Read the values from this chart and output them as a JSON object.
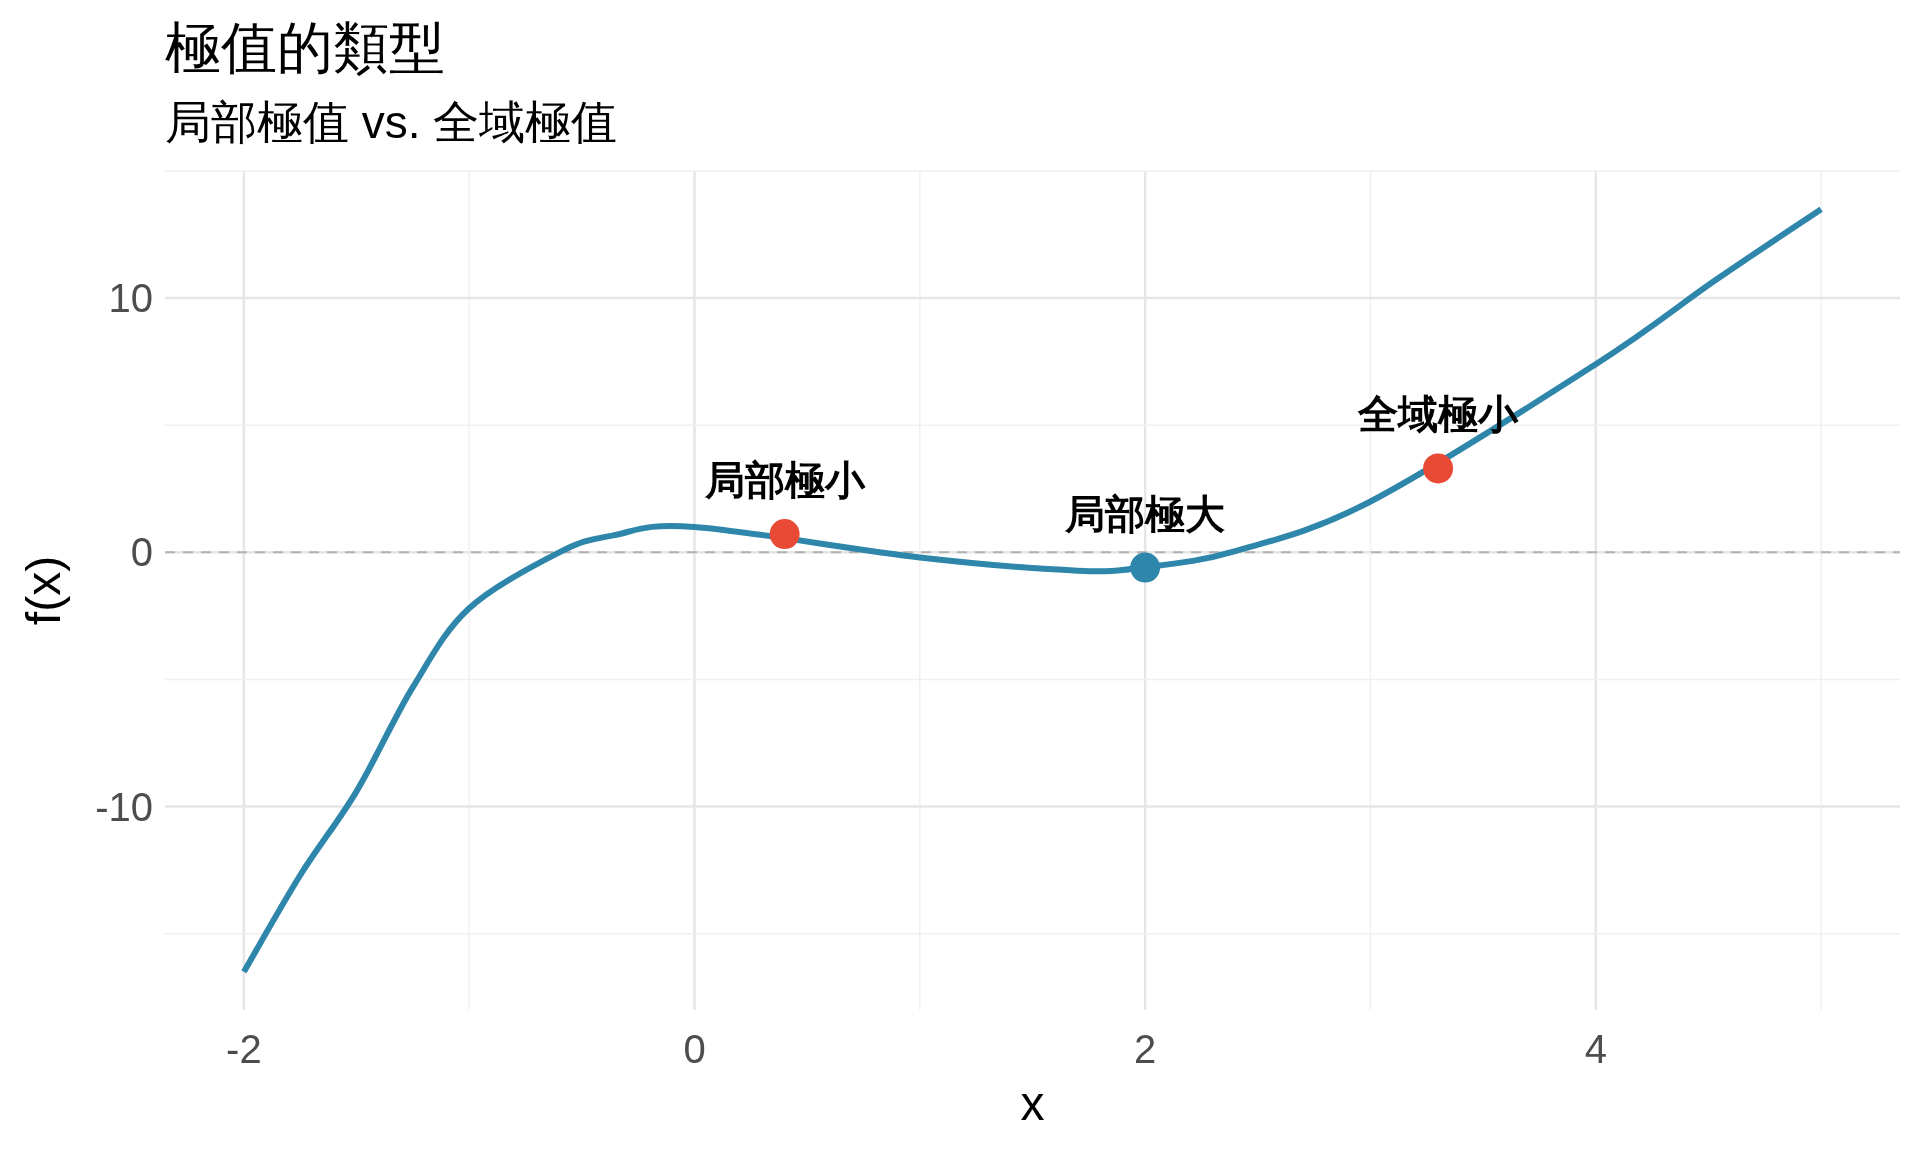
{
  "chart_data": {
    "type": "line",
    "title": "極值的類型",
    "subtitle": "局部極值 vs. 全域極值",
    "xlabel": "x",
    "ylabel": "f(x)",
    "xlim": [
      -2.35,
      5.35
    ],
    "ylim": [
      -18,
      15
    ],
    "xticks": [
      -2,
      0,
      2,
      4
    ],
    "yticks": [
      -10,
      0,
      10
    ],
    "grid": true,
    "series": [
      {
        "color": "#2e86ab",
        "x": [
          -2,
          -1.75,
          -1.5,
          -1.25,
          -1,
          -0.6,
          -0.36,
          0,
          1,
          1.7,
          2,
          2.4,
          3,
          4,
          4.53,
          5
        ],
        "values": [
          -16.5,
          -12.7,
          -9.4,
          -5.3,
          -2.2,
          0,
          0.67,
          1.0,
          -0.2,
          -0.72,
          -0.58,
          0.05,
          2.0,
          7.4,
          10.7,
          13.5
        ]
      },
      {
        "type": "scatter",
        "x": [
          0.4,
          2,
          3.3
        ],
        "values": [
          0.72,
          -0.6,
          3.3
        ],
        "colors": [
          "#e84a35",
          "#2e86ab",
          "#e84a35"
        ]
      }
    ],
    "ref_lines": [
      {
        "axis": "y",
        "value": 0,
        "color": "#b3b3b3",
        "line_style": "dashed"
      }
    ],
    "annotations": [
      {
        "text": "局部極小",
        "x": 0.4,
        "y": 0.72
      },
      {
        "text": "局部極大",
        "x": 2,
        "y": -0.6
      },
      {
        "text": "全域極小",
        "x": 3.3,
        "y": 3.3
      }
    ]
  }
}
